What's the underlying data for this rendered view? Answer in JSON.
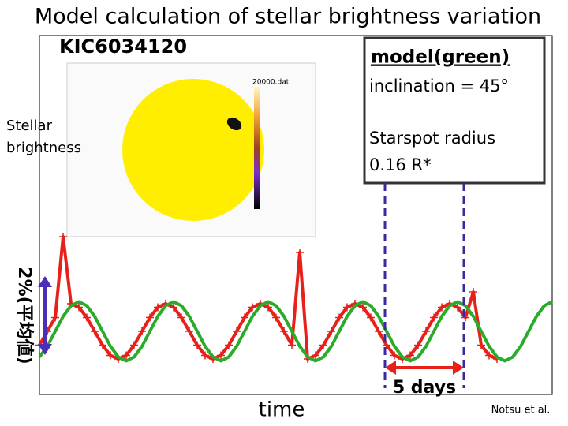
{
  "title": "Model calculation of stellar brightness variation",
  "target": "KIC6034120",
  "inset_label": "20000.dat'",
  "legend_box": {
    "inclination": "inclination = 45°",
    "spot_label": "Starspot radius",
    "spot_value": "0.16 R*"
  },
  "y_label_lines": [
    "Stellar",
    "brightness"
  ],
  "x_label": "time",
  "credit": "Notsu et al.",
  "chart_data": {
    "type": "line",
    "x": [
      0,
      0.5,
      1,
      1.5,
      2,
      2.5,
      3,
      3.5,
      4,
      4.5,
      5,
      5.5,
      6,
      6.5,
      7,
      7.5,
      8,
      8.5,
      9,
      9.5,
      10,
      10.5,
      11,
      11.5,
      12,
      12.5,
      13,
      13.5,
      14,
      14.5,
      15,
      15.5,
      16,
      16.5,
      17,
      17.5,
      18,
      18.5,
      19,
      19.5,
      20,
      20.5,
      21,
      21.5,
      22,
      22.5,
      23,
      23.5,
      24,
      24.5,
      25,
      25.5,
      26,
      26.5,
      27,
      27.5,
      28,
      28.5,
      29,
      29.5,
      30,
      30.5,
      31,
      31.5,
      32,
      32.5
    ],
    "xlim": [
      0,
      32.5
    ],
    "ylim": [
      -1.6,
      7.5
    ],
    "series": [
      {
        "color": "#e8201a",
        "values": [
          -0.35,
          0,
          0.35,
          2.4,
          0.7,
          0.61,
          0.35,
          0,
          -0.35,
          -0.61,
          -0.7,
          -0.61,
          -0.35,
          0,
          0.35,
          0.61,
          0.7,
          0.61,
          0.35,
          0,
          -0.35,
          -0.61,
          -0.7,
          -0.61,
          -0.35,
          0,
          0.35,
          0.61,
          0.7,
          0.61,
          0.35,
          0,
          -0.35,
          2.0,
          -0.7,
          -0.61,
          -0.35,
          0,
          0.35,
          0.61,
          0.7,
          0.61,
          0.35,
          0,
          -0.35,
          -0.61,
          -0.7,
          -0.61,
          -0.35,
          0,
          0.35,
          0.61,
          0.7,
          0.61,
          0.35,
          1.0,
          -0.35,
          -0.61,
          -0.7,
          null,
          null,
          null,
          null,
          null,
          null,
          null
        ]
      },
      {
        "name": "model(green)",
        "color": "#2aab2a",
        "values": [
          -0.65,
          -0.38,
          0,
          0.38,
          0.65,
          0.75,
          0.65,
          0.38,
          0,
          -0.38,
          -0.65,
          -0.75,
          -0.65,
          -0.38,
          0,
          0.38,
          0.65,
          0.75,
          0.65,
          0.38,
          0,
          -0.38,
          -0.65,
          -0.75,
          -0.65,
          -0.38,
          0,
          0.38,
          0.65,
          0.75,
          0.65,
          0.38,
          0,
          -0.38,
          -0.65,
          -0.75,
          -0.65,
          -0.38,
          0,
          0.38,
          0.65,
          0.75,
          0.65,
          0.38,
          0,
          -0.38,
          -0.65,
          -0.75,
          -0.65,
          -0.38,
          0,
          0.38,
          0.65,
          0.75,
          0.65,
          0.38,
          0,
          -0.38,
          -0.65,
          -0.75,
          -0.65,
          -0.38,
          0,
          0.38,
          0.65,
          0.75
        ]
      }
    ],
    "scale_bar": {
      "start": -0.6,
      "value": 2,
      "label": "2%(平均値)"
    },
    "period_marker": {
      "start": 21.9,
      "value": 5,
      "label": "5 days"
    }
  }
}
